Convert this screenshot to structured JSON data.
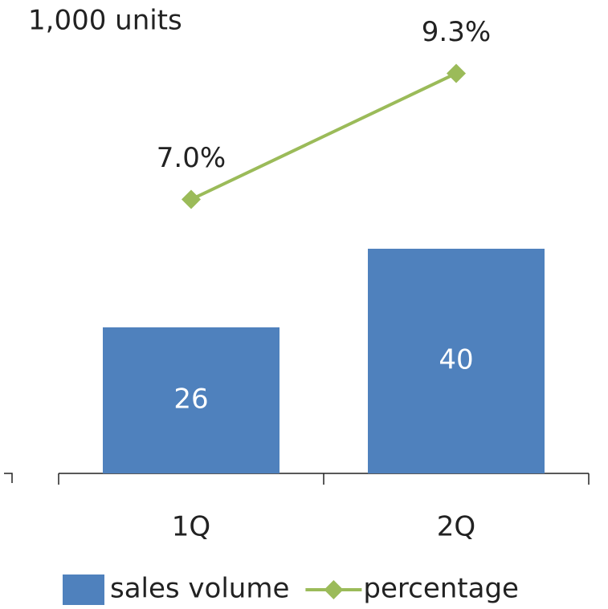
{
  "chart_data": {
    "type": "combo",
    "y_label": "1,000 units",
    "categories": [
      "1Q",
      "2Q"
    ],
    "series": [
      {
        "name": "sales volume",
        "type": "bar",
        "color": "#4f81bd",
        "values": [
          26,
          40
        ]
      },
      {
        "name": "percentage",
        "type": "line",
        "axis": "y2",
        "color": "#9bbb59",
        "values": [
          7.0,
          9.3
        ],
        "value_labels": [
          "7.0%",
          "9.3%"
        ]
      }
    ],
    "ylim": [
      0,
      80
    ],
    "y2lim": [
      2,
      10.2
    ],
    "legend": "bottom"
  }
}
